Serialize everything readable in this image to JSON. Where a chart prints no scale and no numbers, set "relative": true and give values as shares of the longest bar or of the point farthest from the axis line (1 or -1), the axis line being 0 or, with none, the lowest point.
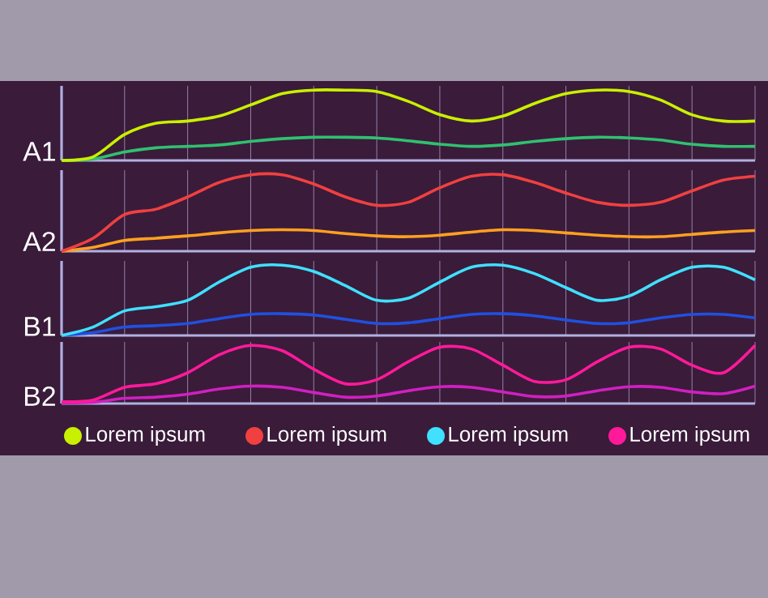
{
  "chart_data": [
    {
      "type": "line",
      "ylabel": "A1",
      "relative": true,
      "grid": "x",
      "legend": "bottom",
      "marker": "none",
      "line_style": "solid",
      "categories": [
        null,
        null,
        null,
        null,
        null,
        null,
        null,
        null,
        null,
        null,
        null,
        null,
        null,
        null,
        null,
        null,
        null,
        null,
        null,
        null,
        null,
        null,
        null
      ],
      "series": [
        {
          "name": "Lorem ipsum",
          "color": "#c8f000",
          "values": [
            0,
            0.05,
            0.37,
            0.53,
            0.56,
            0.63,
            0.79,
            0.95,
            1,
            1,
            0.98,
            0.84,
            0.65,
            0.56,
            0.63,
            0.81,
            0.95,
            1,
            0.98,
            0.86,
            0.65,
            0.56,
            0.56
          ]
        },
        {
          "color": "#30c070",
          "values": [
            0,
            0.02,
            0.12,
            0.18,
            0.2,
            0.22,
            0.27,
            0.31,
            0.33,
            0.33,
            0.32,
            0.28,
            0.23,
            0.2,
            0.22,
            0.27,
            0.31,
            0.33,
            0.32,
            0.29,
            0.23,
            0.2,
            0.2
          ]
        }
      ]
    },
    {
      "type": "line",
      "ylabel": "A2",
      "relative": true,
      "grid": "x",
      "legend": "bottom",
      "marker": "none",
      "line_style": "solid",
      "categories": [
        null,
        null,
        null,
        null,
        null,
        null,
        null,
        null,
        null,
        null,
        null,
        null,
        null,
        null,
        null,
        null,
        null,
        null,
        null,
        null,
        null,
        null,
        null
      ],
      "series": [
        {
          "name": "Lorem ipsum",
          "color": "#f04040",
          "values": [
            0,
            0.17,
            0.48,
            0.55,
            0.71,
            0.9,
            1,
            1,
            0.88,
            0.71,
            0.6,
            0.64,
            0.83,
            0.98,
            1,
            0.9,
            0.76,
            0.64,
            0.6,
            0.64,
            0.79,
            0.93,
            0.98
          ]
        },
        {
          "color": "#ffa020",
          "values": [
            0,
            0.05,
            0.14,
            0.17,
            0.2,
            0.24,
            0.27,
            0.28,
            0.27,
            0.23,
            0.2,
            0.19,
            0.21,
            0.25,
            0.28,
            0.27,
            0.24,
            0.21,
            0.19,
            0.19,
            0.22,
            0.25,
            0.27
          ]
        }
      ]
    },
    {
      "type": "line",
      "ylabel": "B1",
      "relative": true,
      "grid": "x",
      "legend": "bottom",
      "marker": "none",
      "line_style": "solid",
      "categories": [
        null,
        null,
        null,
        null,
        null,
        null,
        null,
        null,
        null,
        null,
        null,
        null,
        null,
        null,
        null,
        null,
        null,
        null,
        null,
        null,
        null,
        null,
        null
      ],
      "series": [
        {
          "name": "Lorem ipsum",
          "color": "#40e0ff",
          "values": [
            0,
            0.12,
            0.35,
            0.41,
            0.5,
            0.76,
            0.97,
            1,
            0.91,
            0.71,
            0.5,
            0.53,
            0.76,
            0.97,
            1,
            0.88,
            0.68,
            0.5,
            0.56,
            0.79,
            0.97,
            0.97,
            0.79
          ]
        },
        {
          "color": "#2050e0",
          "values": [
            0,
            0.04,
            0.12,
            0.14,
            0.17,
            0.24,
            0.3,
            0.31,
            0.29,
            0.23,
            0.17,
            0.18,
            0.24,
            0.3,
            0.31,
            0.28,
            0.22,
            0.17,
            0.18,
            0.25,
            0.3,
            0.3,
            0.25
          ]
        }
      ]
    },
    {
      "type": "line",
      "ylabel": "B2",
      "relative": true,
      "grid": "x",
      "legend": "bottom",
      "marker": "none",
      "line_style": "solid",
      "categories": [
        null,
        null,
        null,
        null,
        null,
        null,
        null,
        null,
        null,
        null,
        null,
        null,
        null,
        null,
        null,
        null,
        null,
        null,
        null,
        null,
        null,
        null,
        null
      ],
      "series": [
        {
          "name": "Lorem ipsum",
          "color": "#ff1a9a",
          "values": [
            0.03,
            0.06,
            0.28,
            0.34,
            0.53,
            0.84,
            1,
            0.91,
            0.59,
            0.34,
            0.41,
            0.72,
            0.97,
            0.94,
            0.66,
            0.38,
            0.41,
            0.72,
            0.97,
            0.94,
            0.66,
            0.53,
            1
          ]
        },
        {
          "color": "#d020c0",
          "values": [
            0.01,
            0.02,
            0.09,
            0.11,
            0.16,
            0.25,
            0.3,
            0.28,
            0.19,
            0.11,
            0.13,
            0.22,
            0.29,
            0.28,
            0.2,
            0.12,
            0.13,
            0.22,
            0.29,
            0.28,
            0.2,
            0.17,
            0.3
          ]
        }
      ]
    }
  ]
}
